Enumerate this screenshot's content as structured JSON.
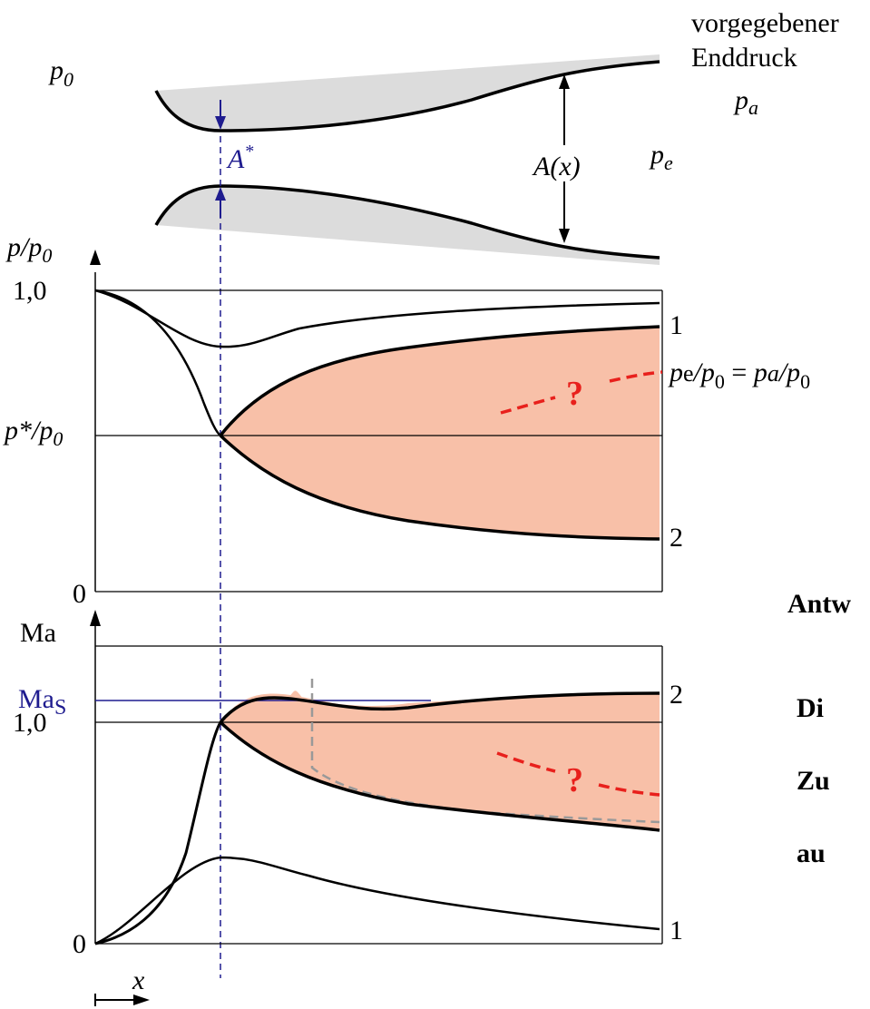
{
  "nozzle": {
    "p0_label": "p",
    "p0_sub": "0",
    "note_line1": "vorgegebener",
    "note_line2": "Enddruck",
    "pa_label": "p",
    "pa_sub": "a",
    "throat_label": "A",
    "throat_sup": "*",
    "area_label": "A(x)",
    "pe_label": "p",
    "pe_sub": "e"
  },
  "pressure_plot": {
    "ylabel": "p/p",
    "ylabel_sub": "0",
    "tick_top": "1,0",
    "tick_critical": "p*/p",
    "tick_critical_sub": "0",
    "tick_zero": "0",
    "curve1_label": "1",
    "curve2_label": "2",
    "question": "?",
    "ratio_label": "p",
    "ratio_sub_e": "e",
    "ratio_den": "/p",
    "ratio_den_sub": "0",
    "ratio_eq": " = ",
    "ratio_rhs": "p",
    "ratio_rhs_sub": "a",
    "ratio_rhs_den": "/p",
    "ratio_rhs_den_sub": "0"
  },
  "mach_plot": {
    "ylabel": "Ma",
    "tick_mas": "Ma",
    "tick_mas_sub": "S",
    "tick_one": "1,0",
    "tick_zero": "0",
    "curve2_label": "2",
    "curve1_label": "1",
    "question": "?",
    "xlabel": "x"
  },
  "answer_text": {
    "line1": "Antw",
    "line2": "Di",
    "line3": "Zu",
    "line4": "au"
  },
  "colors": {
    "shade": "#f8c0a8",
    "wall_fill": "#dcdcdc",
    "blue": "#1f1c8f",
    "red": "#e8201c",
    "dashed_gray": "#999999"
  }
}
